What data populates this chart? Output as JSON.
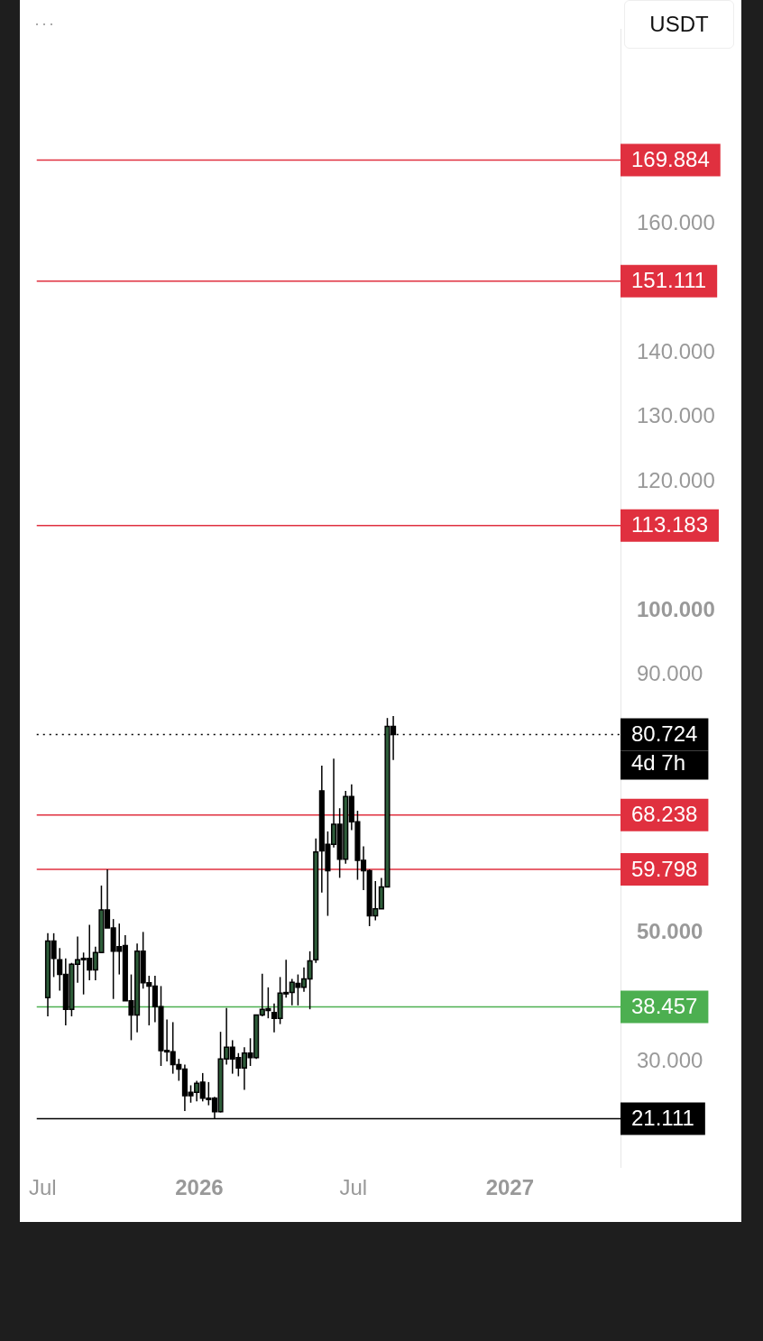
{
  "chart_data": {
    "type": "candlestick",
    "x": [
      "2025-07-07",
      "2025-07-14",
      "2025-07-21",
      "2025-07-28",
      "2025-08-04",
      "2025-08-11",
      "2025-08-18",
      "2025-08-25",
      "2025-09-01",
      "2025-09-08",
      "2025-09-15",
      "2025-09-22",
      "2025-09-29",
      "2025-10-06",
      "2025-10-13",
      "2025-10-20",
      "2025-10-27",
      "2025-11-03",
      "2025-11-10",
      "2025-11-17",
      "2025-11-24",
      "2025-12-01",
      "2025-12-08",
      "2025-12-15",
      "2025-12-22",
      "2025-12-29",
      "2026-01-05",
      "2026-01-12",
      "2026-01-19",
      "2026-01-26",
      "2026-02-02",
      "2026-02-09",
      "2026-02-16",
      "2026-02-23",
      "2026-03-02",
      "2026-03-09",
      "2026-03-16",
      "2026-03-23",
      "2026-03-30",
      "2026-04-06",
      "2026-04-13",
      "2026-04-20",
      "2026-04-27",
      "2026-05-04",
      "2026-05-11",
      "2026-05-18",
      "2026-05-25",
      "2026-06-01",
      "2026-06-08",
      "2026-06-15",
      "2026-06-22",
      "2026-06-29",
      "2026-07-06",
      "2026-07-13",
      "2026-07-20",
      "2026-07-27",
      "2026-08-03",
      "2026-08-10",
      "2026-08-17"
    ],
    "ohlc": [
      [
        39.9,
        49.9,
        37.0,
        48.7
      ],
      [
        48.7,
        49.9,
        43.1,
        46.0
      ],
      [
        45.8,
        47.6,
        41.0,
        43.5
      ],
      [
        43.5,
        46.0,
        35.6,
        38.1
      ],
      [
        38.1,
        45.3,
        37.0,
        45.1
      ],
      [
        45.1,
        49.4,
        42.2,
        45.8
      ],
      [
        46.0,
        46.9,
        40.4,
        45.8
      ],
      [
        46.0,
        51.2,
        42.6,
        44.2
      ],
      [
        44.2,
        47.8,
        42.6,
        46.9
      ],
      [
        46.9,
        57.3,
        46.9,
        53.5
      ],
      [
        53.5,
        59.8,
        50.7,
        50.7
      ],
      [
        50.7,
        52.1,
        39.7,
        47.1
      ],
      [
        47.8,
        51.4,
        43.5,
        47.1
      ],
      [
        48.0,
        49.6,
        39.4,
        39.4
      ],
      [
        39.4,
        43.5,
        33.3,
        37.2
      ],
      [
        37.2,
        48.3,
        34.5,
        47.1
      ],
      [
        47.1,
        50.1,
        41.3,
        42.2
      ],
      [
        42.2,
        43.3,
        35.6,
        41.7
      ],
      [
        41.7,
        43.3,
        36.1,
        38.5
      ],
      [
        38.5,
        41.7,
        29.3,
        31.7
      ],
      [
        31.7,
        36.5,
        30.0,
        31.5
      ],
      [
        31.5,
        36.1,
        28.1,
        29.5
      ],
      [
        29.5,
        30.4,
        27.0,
        28.8
      ],
      [
        28.8,
        29.5,
        22.3,
        24.7
      ],
      [
        25.2,
        26.3,
        23.6,
        24.7
      ],
      [
        25.2,
        27.0,
        23.8,
        26.6
      ],
      [
        26.8,
        28.2,
        23.8,
        24.3
      ],
      [
        24.3,
        26.8,
        23.2,
        24.1
      ],
      [
        24.3,
        24.5,
        21.1,
        22.2
      ],
      [
        22.2,
        34.6,
        22.1,
        30.4
      ],
      [
        30.4,
        38.3,
        29.5,
        32.2
      ],
      [
        32.2,
        33.3,
        28.1,
        30.4
      ],
      [
        30.6,
        31.3,
        27.7,
        29.0
      ],
      [
        29.0,
        32.2,
        25.6,
        31.3
      ],
      [
        31.3,
        33.6,
        29.3,
        30.6
      ],
      [
        30.6,
        37.2,
        30.4,
        37.2
      ],
      [
        37.2,
        43.6,
        37.0,
        38.1
      ],
      [
        38.2,
        41.5,
        36.7,
        37.9
      ],
      [
        37.6,
        39.0,
        34.5,
        36.7
      ],
      [
        36.7,
        43.1,
        35.8,
        40.6
      ],
      [
        40.6,
        45.8,
        39.9,
        40.7
      ],
      [
        40.7,
        42.8,
        38.7,
        42.3
      ],
      [
        42.1,
        43.5,
        38.7,
        41.5
      ],
      [
        41.5,
        44.6,
        40.8,
        42.8
      ],
      [
        42.8,
        47.1,
        38.1,
        45.6
      ],
      [
        45.8,
        64.6,
        45.3,
        62.5
      ],
      [
        72.0,
        75.9,
        56.2,
        62.7
      ],
      [
        63.7,
        65.7,
        52.6,
        59.6
      ],
      [
        63.7,
        77.0,
        63.2,
        66.8
      ],
      [
        66.8,
        69.3,
        58.5,
        61.4
      ],
      [
        61.4,
        72.0,
        60.7,
        71.1
      ],
      [
        71.1,
        73.0,
        65.9,
        67.2
      ],
      [
        67.2,
        68.9,
        58.2,
        61.2
      ],
      [
        61.2,
        63.4,
        56.6,
        59.6
      ],
      [
        59.6,
        59.8,
        51.0,
        52.6
      ],
      [
        52.6,
        58.0,
        51.9,
        53.7
      ],
      [
        53.7,
        58.5,
        53.7,
        57.1
      ],
      [
        57.1,
        83.3,
        57.1,
        82.0
      ],
      [
        82.0,
        83.6,
        76.8,
        80.724
      ]
    ],
    "colors": [
      "#2e5d3a",
      "#000000",
      "#000000",
      "#000000",
      "#2e5d3a",
      "#2e5d3a",
      "#000000",
      "#000000",
      "#2e5d3a",
      "#2e5d3a",
      "#000000",
      "#000000",
      "#000000",
      "#000000",
      "#000000",
      "#2e5d3a",
      "#000000",
      "#000000",
      "#000000",
      "#000000",
      "#000000",
      "#000000",
      "#000000",
      "#000000",
      "#000000",
      "#2e5d3a",
      "#000000",
      "#000000",
      "#000000",
      "#2e5d3a",
      "#2e5d3a",
      "#000000",
      "#000000",
      "#2e5d3a",
      "#000000",
      "#2e5d3a",
      "#2e5d3a",
      "#000000",
      "#000000",
      "#2e5d3a",
      "#2e5d3a",
      "#2e5d3a",
      "#000000",
      "#2e5d3a",
      "#2e5d3a",
      "#2e5d3a",
      "#000000",
      "#000000",
      "#2e5d3a",
      "#000000",
      "#2e5d3a",
      "#000000",
      "#000000",
      "#000000",
      "#000000",
      "#2e5d3a",
      "#2e5d3a",
      "#2e5d3a",
      "#000000"
    ],
    "xlim": [
      "2025-06-24",
      "2027-05-11"
    ],
    "xticks": [
      {
        "value": "2025-07-01",
        "label": "Jul"
      },
      {
        "value": "2026-01-01",
        "label": "2026"
      },
      {
        "value": "2026-07-01",
        "label": "Jul"
      },
      {
        "value": "2027-01-01",
        "label": "2027"
      }
    ],
    "ylim": [
      13.6,
      190.2
    ],
    "yticks": [
      {
        "value": 30,
        "label": "30.000"
      },
      {
        "value": 50,
        "label": "50.000"
      },
      {
        "value": 90,
        "label": "90.000"
      },
      {
        "value": 100,
        "label": "100.000"
      },
      {
        "value": 120,
        "label": "120.000"
      },
      {
        "value": 130,
        "label": "130.000"
      },
      {
        "value": 140,
        "label": "140.000"
      },
      {
        "value": 160,
        "label": "160.000"
      }
    ],
    "ref_lines": [
      {
        "axis": "y",
        "value": 169.884,
        "label": "169.884",
        "color": "#e0303f"
      },
      {
        "axis": "y",
        "value": 151.111,
        "label": "151.111",
        "color": "#e0303f"
      },
      {
        "axis": "y",
        "value": 113.183,
        "label": "113.183",
        "color": "#e0303f"
      },
      {
        "axis": "y",
        "value": 80.724,
        "label": "80.724",
        "color": "#000000",
        "line_style": "dotted"
      },
      {
        "axis": "y",
        "value": 68.238,
        "label": "68.238",
        "color": "#e0303f"
      },
      {
        "axis": "y",
        "value": 59.798,
        "label": "59.798",
        "color": "#e0303f"
      },
      {
        "axis": "y",
        "value": 38.457,
        "label": "38.457",
        "color": "#4caf50"
      },
      {
        "axis": "y",
        "value": 21.111,
        "label": "21.111",
        "color": "#000000"
      }
    ],
    "annotations": [
      "USDT",
      "4d 7h"
    ],
    "grid": false,
    "legend": false
  }
}
